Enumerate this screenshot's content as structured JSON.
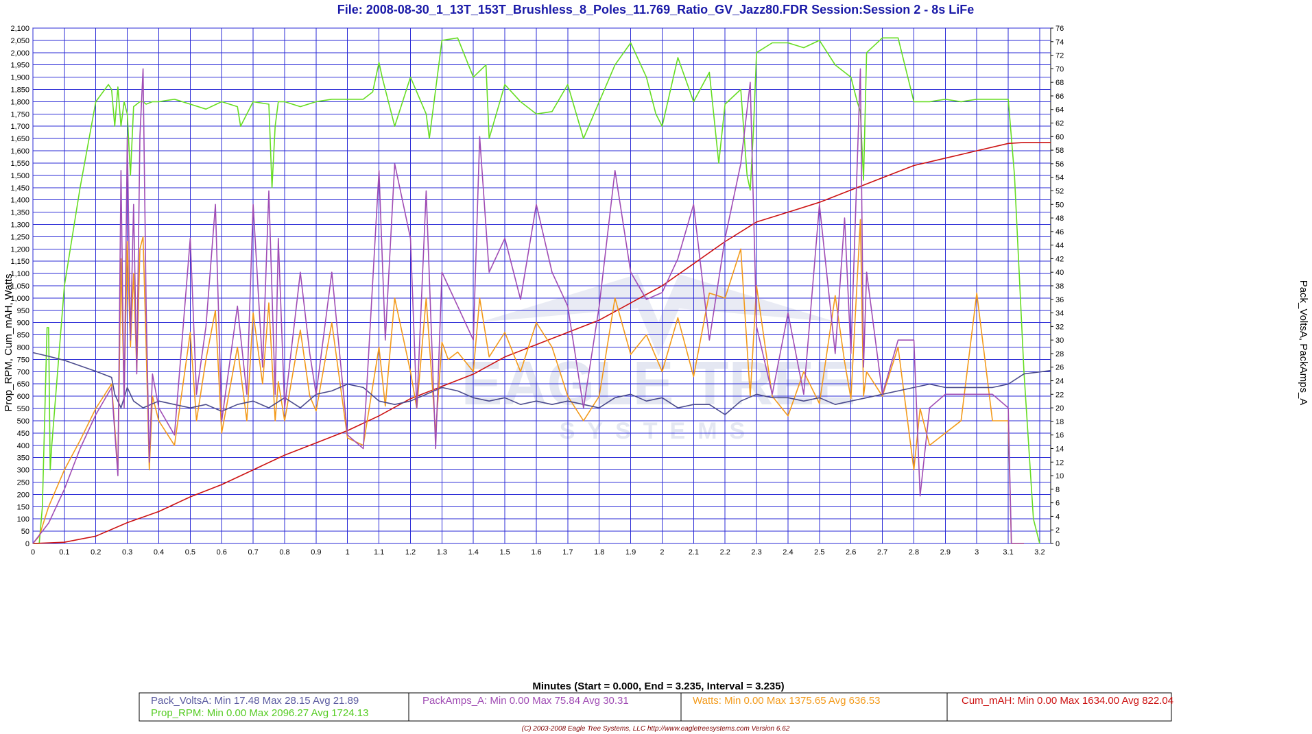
{
  "chart_data": {
    "type": "line",
    "title": "File: 2008-08-30_1_13T_153T_Brushless_8_Poles_11.769_Ratio_GV_Jazz80.FDR   Session:Session 2 - 8s LiFe",
    "xlabel": "Minutes (Start = 0.000,  End = 3.235,  Interval =  3.235)",
    "ylabel_left": "Prop_RPM, Cum_mAH, Watts",
    "ylabel_right": "Pack_VoltsA, PackAmps_A",
    "xlim": [
      0,
      3.235
    ],
    "ylim_left": [
      0,
      2100
    ],
    "ylim_right": [
      0,
      76
    ],
    "grid": true,
    "x_ticks": [
      "0",
      "0.1",
      "0.2",
      "0.3",
      "0.4",
      "0.5",
      "0.6",
      "0.7",
      "0.8",
      "0.9",
      "1",
      "1.1",
      "1.2",
      "1.3",
      "1.4",
      "1.5",
      "1.6",
      "1.7",
      "1.8",
      "1.9",
      "2",
      "2.1",
      "2.2",
      "2.3",
      "2.4",
      "2.5",
      "2.6",
      "2.7",
      "2.8",
      "2.9",
      "3",
      "3.1",
      "3.2"
    ],
    "y_ticks_left": [
      "0",
      "50",
      "100",
      "150",
      "200",
      "250",
      "300",
      "350",
      "400",
      "450",
      "500",
      "550",
      "600",
      "650",
      "700",
      "750",
      "800",
      "850",
      "900",
      "950",
      "1,000",
      "1,050",
      "1,100",
      "1,150",
      "1,200",
      "1,250",
      "1,300",
      "1,350",
      "1,400",
      "1,450",
      "1,500",
      "1,550",
      "1,600",
      "1,650",
      "1,700",
      "1,750",
      "1,800",
      "1,850",
      "1,900",
      "1,950",
      "2,000",
      "2,050",
      "2,100"
    ],
    "y_ticks_right": [
      "0",
      "2",
      "4",
      "6",
      "8",
      "10",
      "12",
      "14",
      "16",
      "18",
      "20",
      "22",
      "24",
      "26",
      "28",
      "30",
      "32",
      "34",
      "36",
      "38",
      "40",
      "42",
      "44",
      "46",
      "48",
      "50",
      "52",
      "54",
      "56",
      "58",
      "60",
      "62",
      "64",
      "66",
      "68",
      "70",
      "72",
      "74",
      "76"
    ],
    "series": [
      {
        "name": "Prop_RPM",
        "axis": "left",
        "color": "#66dd22",
        "x": [
          0,
          0.02,
          0.03,
          0.045,
          0.05,
          0.055,
          0.06,
          0.1,
          0.15,
          0.2,
          0.24,
          0.25,
          0.26,
          0.27,
          0.28,
          0.29,
          0.3,
          0.31,
          0.32,
          0.33,
          0.34,
          0.35,
          0.36,
          0.38,
          0.4,
          0.45,
          0.5,
          0.55,
          0.6,
          0.65,
          0.66,
          0.7,
          0.75,
          0.76,
          0.77,
          0.78,
          0.8,
          0.85,
          0.9,
          0.95,
          1.0,
          1.05,
          1.08,
          1.1,
          1.11,
          1.15,
          1.2,
          1.25,
          1.26,
          1.3,
          1.35,
          1.4,
          1.44,
          1.45,
          1.5,
          1.55,
          1.6,
          1.65,
          1.7,
          1.75,
          1.8,
          1.85,
          1.9,
          1.95,
          1.98,
          2.0,
          2.05,
          2.1,
          2.15,
          2.18,
          2.2,
          2.25,
          2.27,
          2.28,
          2.29,
          2.3,
          2.35,
          2.4,
          2.45,
          2.5,
          2.55,
          2.6,
          2.62,
          2.63,
          2.64,
          2.65,
          2.7,
          2.75,
          2.8,
          2.82,
          2.85,
          2.9,
          2.95,
          3.0,
          3.05,
          3.1,
          3.12,
          3.15,
          3.18,
          3.2
        ],
        "y": [
          0,
          0,
          150,
          880,
          880,
          300,
          400,
          1050,
          1450,
          1800,
          1870,
          1850,
          1700,
          1860,
          1700,
          1800,
          1750,
          1500,
          1780,
          1790,
          1800,
          1800,
          1790,
          1800,
          1800,
          1810,
          1790,
          1770,
          1800,
          1780,
          1700,
          1800,
          1790,
          1450,
          1700,
          1800,
          1800,
          1780,
          1800,
          1810,
          1810,
          1810,
          1840,
          1960,
          1900,
          1700,
          1900,
          1750,
          1650,
          2050,
          2060,
          1900,
          1950,
          1650,
          1870,
          1800,
          1750,
          1760,
          1870,
          1650,
          1800,
          1950,
          2040,
          1900,
          1750,
          1700,
          1980,
          1800,
          1920,
          1550,
          1790,
          1850,
          1500,
          1440,
          1680,
          2000,
          2040,
          2040,
          2020,
          2050,
          1950,
          1900,
          1800,
          1760,
          1480,
          2000,
          2060,
          2060,
          1800,
          1800,
          1800,
          1810,
          1800,
          1810,
          1810,
          1810,
          1500,
          700,
          100,
          0
        ]
      },
      {
        "name": "Cum_mAH",
        "axis": "left",
        "color": "#cc1111",
        "x": [
          0,
          0.1,
          0.2,
          0.3,
          0.4,
          0.5,
          0.6,
          0.7,
          0.8,
          0.9,
          1.0,
          1.1,
          1.2,
          1.3,
          1.4,
          1.5,
          1.6,
          1.7,
          1.8,
          1.9,
          2.0,
          2.1,
          2.2,
          2.3,
          2.4,
          2.5,
          2.6,
          2.7,
          2.8,
          2.9,
          3.0,
          3.1,
          3.15,
          3.235
        ],
        "y": [
          0,
          5,
          30,
          85,
          130,
          190,
          240,
          300,
          360,
          410,
          460,
          520,
          590,
          640,
          690,
          760,
          810,
          860,
          910,
          980,
          1050,
          1140,
          1230,
          1310,
          1350,
          1390,
          1440,
          1490,
          1540,
          1570,
          1600,
          1630,
          1634,
          1634
        ]
      },
      {
        "name": "Watts",
        "axis": "left",
        "color": "#f39a1a",
        "x": [
          0,
          0.02,
          0.05,
          0.1,
          0.15,
          0.2,
          0.25,
          0.27,
          0.28,
          0.29,
          0.3,
          0.31,
          0.32,
          0.33,
          0.34,
          0.35,
          0.36,
          0.37,
          0.38,
          0.4,
          0.45,
          0.5,
          0.52,
          0.55,
          0.58,
          0.6,
          0.65,
          0.68,
          0.7,
          0.73,
          0.75,
          0.77,
          0.78,
          0.8,
          0.85,
          0.88,
          0.9,
          0.95,
          1.0,
          1.05,
          1.1,
          1.12,
          1.15,
          1.2,
          1.22,
          1.25,
          1.28,
          1.3,
          1.32,
          1.35,
          1.4,
          1.42,
          1.45,
          1.5,
          1.55,
          1.6,
          1.65,
          1.7,
          1.75,
          1.8,
          1.85,
          1.9,
          1.95,
          2.0,
          2.05,
          2.1,
          2.15,
          2.2,
          2.25,
          2.28,
          2.3,
          2.35,
          2.4,
          2.45,
          2.5,
          2.55,
          2.58,
          2.6,
          2.63,
          2.64,
          2.65,
          2.7,
          2.75,
          2.8,
          2.82,
          2.85,
          2.9,
          2.95,
          3.0,
          3.05,
          3.1,
          3.11,
          3.12,
          3.15
        ],
        "y": [
          0,
          30,
          150,
          300,
          420,
          550,
          650,
          300,
          1160,
          600,
          1230,
          800,
          1100,
          700,
          1200,
          1250,
          800,
          300,
          600,
          500,
          400,
          860,
          500,
          750,
          950,
          450,
          800,
          500,
          940,
          650,
          980,
          500,
          660,
          500,
          870,
          600,
          540,
          900,
          430,
          400,
          800,
          560,
          1000,
          700,
          550,
          1000,
          450,
          820,
          750,
          780,
          700,
          1000,
          760,
          860,
          700,
          900,
          800,
          600,
          500,
          600,
          1000,
          770,
          850,
          700,
          920,
          680,
          1020,
          1000,
          1200,
          600,
          1050,
          600,
          520,
          700,
          570,
          1010,
          740,
          590,
          1320,
          600,
          700,
          600,
          800,
          300,
          550,
          400,
          450,
          500,
          1020,
          500,
          500,
          0,
          0,
          0
        ]
      },
      {
        "name": "Pack_VoltsA",
        "axis": "right",
        "color": "#4a4a8c",
        "x": [
          0,
          0.05,
          0.1,
          0.15,
          0.2,
          0.25,
          0.26,
          0.28,
          0.3,
          0.32,
          0.35,
          0.4,
          0.45,
          0.5,
          0.55,
          0.6,
          0.65,
          0.7,
          0.75,
          0.8,
          0.85,
          0.9,
          0.95,
          1.0,
          1.05,
          1.1,
          1.15,
          1.2,
          1.25,
          1.3,
          1.35,
          1.4,
          1.45,
          1.5,
          1.55,
          1.6,
          1.65,
          1.7,
          1.75,
          1.8,
          1.85,
          1.9,
          1.95,
          2.0,
          2.05,
          2.1,
          2.15,
          2.2,
          2.25,
          2.3,
          2.35,
          2.4,
          2.45,
          2.5,
          2.55,
          2.6,
          2.65,
          2.7,
          2.75,
          2.8,
          2.85,
          2.9,
          2.95,
          3.0,
          3.05,
          3.1,
          3.15,
          3.235
        ],
        "y": [
          28.15,
          27.6,
          27,
          26.2,
          25.4,
          24.5,
          22,
          20,
          23,
          21,
          20,
          21,
          20.5,
          20,
          20.5,
          19.5,
          20.5,
          21,
          20,
          21.5,
          20,
          22,
          22.5,
          23.5,
          23,
          21,
          20.5,
          21,
          22,
          23,
          22.5,
          21.5,
          21,
          21.5,
          20.5,
          21,
          20.5,
          21,
          20.5,
          20,
          21.5,
          22,
          21,
          21.5,
          20,
          20.5,
          20.5,
          19,
          21,
          22,
          21.5,
          21.5,
          21,
          21.5,
          20.5,
          21,
          21.5,
          22,
          22.5,
          23,
          23.5,
          23,
          23,
          23,
          23,
          23.5,
          25,
          25.5
        ]
      },
      {
        "name": "PackAmps_A",
        "axis": "right",
        "color": "#a04cb4",
        "x": [
          0,
          0.05,
          0.1,
          0.15,
          0.2,
          0.25,
          0.27,
          0.28,
          0.29,
          0.3,
          0.31,
          0.32,
          0.33,
          0.34,
          0.35,
          0.36,
          0.37,
          0.38,
          0.4,
          0.45,
          0.5,
          0.52,
          0.55,
          0.58,
          0.6,
          0.65,
          0.68,
          0.7,
          0.73,
          0.75,
          0.77,
          0.78,
          0.8,
          0.85,
          0.88,
          0.9,
          0.95,
          1.0,
          1.05,
          1.1,
          1.12,
          1.15,
          1.2,
          1.22,
          1.25,
          1.28,
          1.3,
          1.32,
          1.35,
          1.4,
          1.42,
          1.45,
          1.5,
          1.55,
          1.6,
          1.65,
          1.7,
          1.75,
          1.8,
          1.85,
          1.9,
          1.95,
          2.0,
          2.05,
          2.1,
          2.15,
          2.2,
          2.25,
          2.28,
          2.3,
          2.35,
          2.4,
          2.45,
          2.5,
          2.55,
          2.58,
          2.6,
          2.63,
          2.64,
          2.65,
          2.7,
          2.75,
          2.8,
          2.82,
          2.85,
          2.9,
          2.95,
          3.0,
          3.05,
          3.1,
          3.11,
          3.12,
          3.15
        ],
        "y": [
          0,
          3,
          8,
          14,
          19,
          23,
          10,
          55,
          20,
          60,
          30,
          50,
          25,
          60,
          70,
          35,
          12,
          25,
          20,
          16,
          45,
          22,
          32,
          50,
          18,
          35,
          22,
          50,
          26,
          52,
          22,
          45,
          20,
          40,
          28,
          22,
          40,
          16,
          14,
          55,
          30,
          56,
          45,
          20,
          52,
          14,
          40,
          38,
          35,
          30,
          60,
          40,
          45,
          36,
          50,
          40,
          35,
          20,
          35,
          55,
          40,
          36,
          37,
          42,
          50,
          30,
          45,
          56,
          68,
          32,
          22,
          34,
          22,
          50,
          28,
          48,
          28,
          70,
          26,
          40,
          22,
          30,
          30,
          7,
          20,
          22,
          22,
          22,
          22,
          20,
          0,
          0,
          0
        ]
      }
    ],
    "legend": {
      "placement": "bottom",
      "entries": [
        {
          "text": "Pack_VoltsA:  Min 17.48   Max 28.15   Avg 21.89",
          "color": "#5a5aa0"
        },
        {
          "text": "Prop_RPM:  Min 0.00   Max 2096.27   Avg 1724.13",
          "color": "#55cc22"
        },
        {
          "text": "PackAmps_A:  Min 0.00   Max 75.84   Avg 30.31",
          "color": "#a04cb4"
        },
        {
          "text": "Watts:  Min 0.00   Max 1375.65   Avg 636.53",
          "color": "#f39a1a"
        },
        {
          "text": "Cum_mAH:  Min 0.00   Max 1634.00   Avg 822.04",
          "color": "#cc1111"
        }
      ]
    },
    "watermark": {
      "line1": "EAGLE TREE",
      "line2": "SYSTEMS"
    },
    "footer": "(C) 2003-2008 Eagle Tree Systems, LLC      http://www.eagletreesystems.com      Version 6.62"
  }
}
